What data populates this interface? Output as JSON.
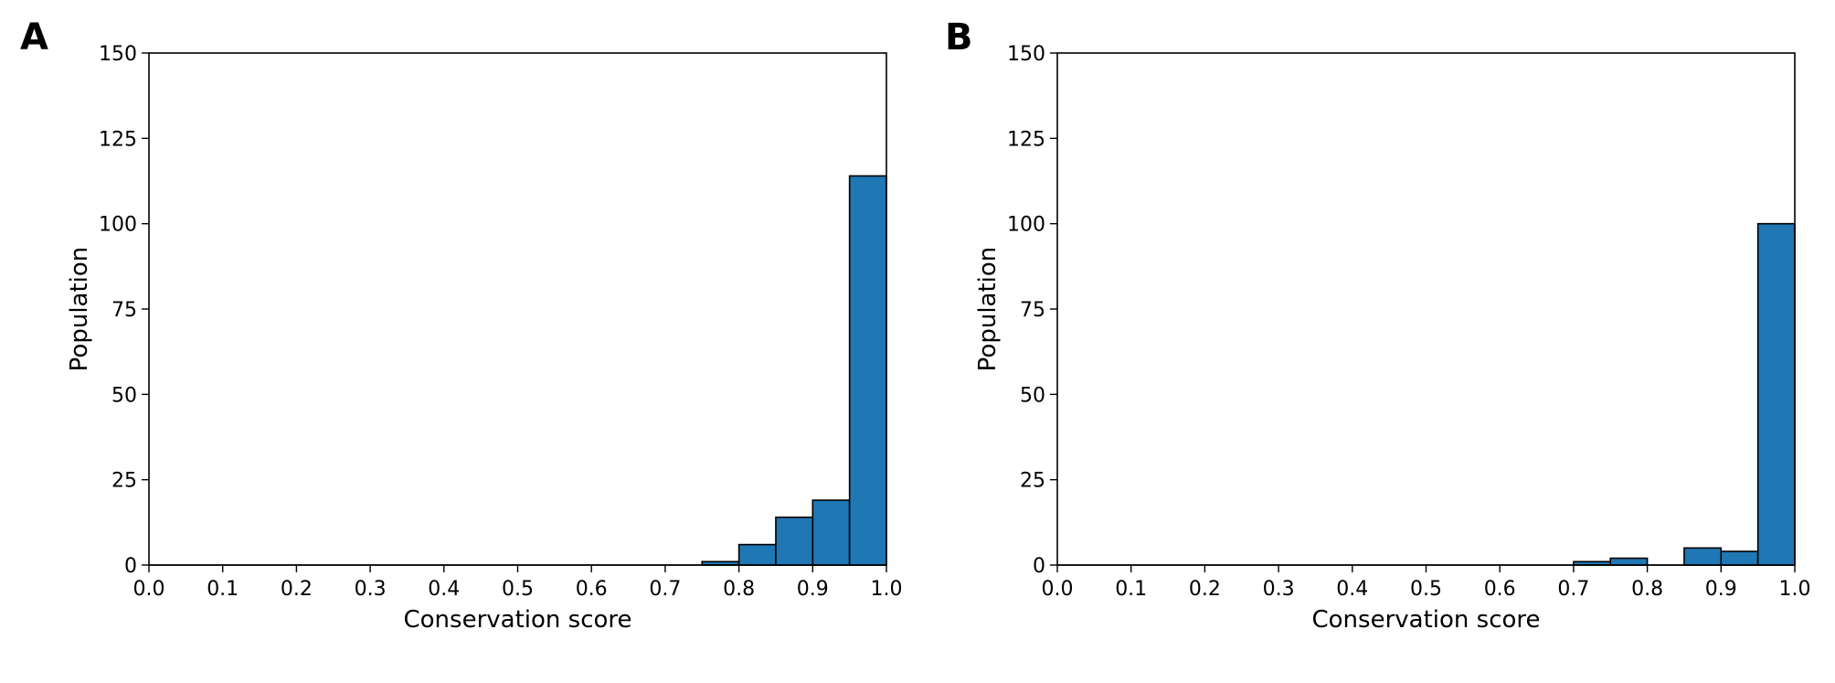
{
  "chart_data": [
    {
      "panel_label": "A",
      "type": "bar",
      "xlabel": "Conservation score",
      "ylabel": "Population",
      "xlim": [
        0,
        1
      ],
      "ylim": [
        0,
        150
      ],
      "xticks": [
        "0.0",
        "0.1",
        "0.2",
        "0.3",
        "0.4",
        "0.5",
        "0.6",
        "0.7",
        "0.8",
        "0.9",
        "1.0"
      ],
      "yticks": [
        "0",
        "25",
        "50",
        "75",
        "100",
        "125",
        "150"
      ],
      "bin_width": 0.05,
      "bins": [
        {
          "x": 0.75,
          "value": 1
        },
        {
          "x": 0.8,
          "value": 6
        },
        {
          "x": 0.85,
          "value": 14
        },
        {
          "x": 0.9,
          "value": 19
        },
        {
          "x": 0.95,
          "value": 114
        }
      ],
      "bar_color": "#1f77b4"
    },
    {
      "panel_label": "B",
      "type": "bar",
      "xlabel": "Conservation score",
      "ylabel": "Population",
      "xlim": [
        0,
        1
      ],
      "ylim": [
        0,
        150
      ],
      "xticks": [
        "0.0",
        "0.1",
        "0.2",
        "0.3",
        "0.4",
        "0.5",
        "0.6",
        "0.7",
        "0.8",
        "0.9",
        "1.0"
      ],
      "yticks": [
        "0",
        "25",
        "50",
        "75",
        "100",
        "125",
        "150"
      ],
      "bin_width": 0.05,
      "bins": [
        {
          "x": 0.7,
          "value": 1
        },
        {
          "x": 0.75,
          "value": 2
        },
        {
          "x": 0.85,
          "value": 5
        },
        {
          "x": 0.9,
          "value": 4
        },
        {
          "x": 0.95,
          "value": 100
        }
      ],
      "bar_color": "#1f77b4"
    }
  ]
}
